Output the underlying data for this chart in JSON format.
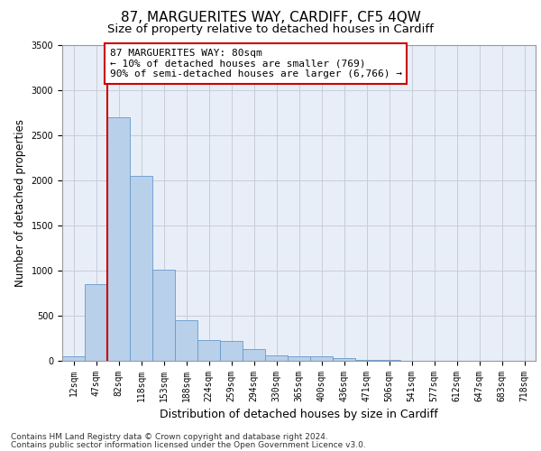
{
  "title": "87, MARGUERITES WAY, CARDIFF, CF5 4QW",
  "subtitle": "Size of property relative to detached houses in Cardiff",
  "xlabel": "Distribution of detached houses by size in Cardiff",
  "ylabel": "Number of detached properties",
  "bar_color": "#b8d0ea",
  "bar_edge_color": "#6699cc",
  "background_color": "#e8eef8",
  "categories": [
    "12sqm",
    "47sqm",
    "82sqm",
    "118sqm",
    "153sqm",
    "188sqm",
    "224sqm",
    "259sqm",
    "294sqm",
    "330sqm",
    "365sqm",
    "400sqm",
    "436sqm",
    "471sqm",
    "506sqm",
    "541sqm",
    "577sqm",
    "612sqm",
    "647sqm",
    "683sqm",
    "718sqm"
  ],
  "values": [
    55,
    855,
    2700,
    2050,
    1010,
    455,
    230,
    225,
    130,
    65,
    55,
    55,
    30,
    15,
    10,
    5,
    5,
    0,
    0,
    0,
    0
  ],
  "ylim": [
    0,
    3500
  ],
  "yticks": [
    0,
    500,
    1000,
    1500,
    2000,
    2500,
    3000,
    3500
  ],
  "vline_x": 1.5,
  "vline_color": "#cc0000",
  "annotation_text": "87 MARGUERITES WAY: 80sqm\n← 10% of detached houses are smaller (769)\n90% of semi-detached houses are larger (6,766) →",
  "annotation_box_facecolor": "#ffffff",
  "annotation_box_edgecolor": "#cc0000",
  "footer_line1": "Contains HM Land Registry data © Crown copyright and database right 2024.",
  "footer_line2": "Contains public sector information licensed under the Open Government Licence v3.0.",
  "grid_color": "#c8ccd8",
  "title_fontsize": 11,
  "subtitle_fontsize": 9.5,
  "xlabel_fontsize": 9,
  "ylabel_fontsize": 8.5,
  "tick_fontsize": 7,
  "annotation_fontsize": 8,
  "footer_fontsize": 6.5
}
